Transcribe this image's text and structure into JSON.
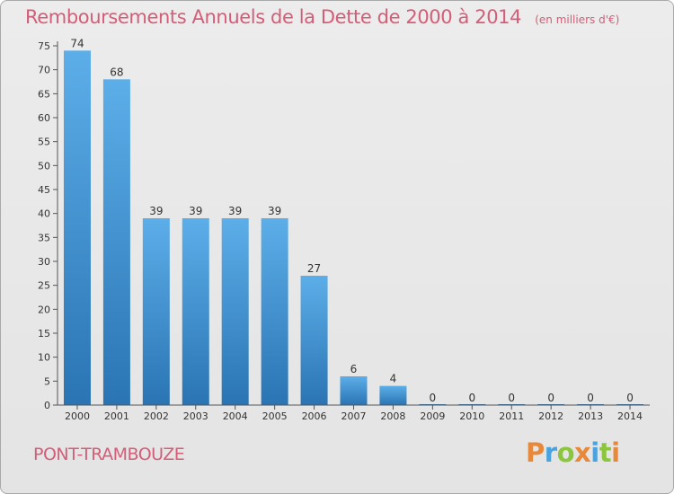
{
  "chart_data": {
    "type": "bar",
    "title": "Remboursements Annuels de la Dette de 2000 à 2014",
    "subtitle": "(en milliers d'€)",
    "categories": [
      "2000",
      "2001",
      "2002",
      "2003",
      "2004",
      "2005",
      "2006",
      "2007",
      "2008",
      "2009",
      "2010",
      "2011",
      "2012",
      "2013",
      "2014"
    ],
    "values": [
      74,
      68,
      39,
      39,
      39,
      39,
      27,
      6,
      4,
      0,
      0,
      0,
      0,
      0,
      0
    ],
    "ylim": [
      0,
      75
    ],
    "yticks": [
      0,
      5,
      10,
      15,
      20,
      25,
      30,
      35,
      40,
      45,
      50,
      55,
      60,
      65,
      70,
      75
    ],
    "xlabel": "",
    "ylabel": "",
    "grid": false,
    "bar_color": "#4ea3e2"
  },
  "footer": {
    "commune": "PONT-TRAMBOUZE",
    "brand": "Proxiti"
  },
  "colors": {
    "title": "#d45d78",
    "brand_letters": [
      "#e8883a",
      "#4aa3dc",
      "#8cc63f",
      "#e8883a",
      "#4aa3dc",
      "#8cc63f",
      "#e8883a"
    ]
  }
}
